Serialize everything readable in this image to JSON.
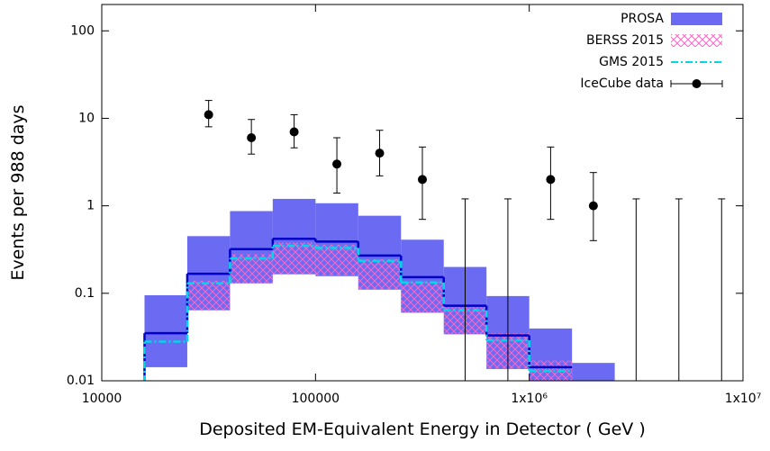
{
  "chart_data": {
    "type": "histogram",
    "xlabel": "Deposited EM-Equivalent Energy in Detector  ( GeV )",
    "ylabel": "Events  per  988  days",
    "xlog": true,
    "ylog": true,
    "xlim": [
      10000,
      10000000
    ],
    "ylim": [
      0.01,
      200
    ],
    "xticks": [
      10000,
      100000,
      {
        "value": 1000000,
        "label": "1x10⁶"
      },
      {
        "value": 10000000,
        "label": "1x10⁷"
      }
    ],
    "yticks": [
      0.01,
      0.1,
      1,
      10,
      100
    ],
    "legend": "upper right",
    "bins": [
      15849,
      25119,
      39811,
      63096,
      100000,
      158489,
      251189,
      398107,
      630957,
      1000000,
      1584893,
      2511886
    ],
    "series": [
      {
        "name": "PROSA",
        "style": "band",
        "color": "#6a6af2",
        "line_color": "#0000c8",
        "low": [
          0.0143,
          0.064,
          0.13,
          0.165,
          0.157,
          0.11,
          0.06,
          0.034,
          0.0136,
          0.01,
          0.01
        ],
        "high": [
          0.095,
          0.45,
          0.87,
          1.2,
          1.07,
          0.77,
          0.41,
          0.2,
          0.093,
          0.0396,
          0.016
        ],
        "values": [
          0.035,
          0.167,
          0.32,
          0.42,
          0.39,
          0.27,
          0.153,
          0.072,
          0.033,
          0.0143,
          null
        ]
      },
      {
        "name": "BERSS 2015",
        "style": "hatch",
        "color": "#ff66c4",
        "low": [
          null,
          0.064,
          0.13,
          0.165,
          0.16,
          0.11,
          0.06,
          0.034,
          0.0136,
          0.01,
          null
        ],
        "high": [
          null,
          0.139,
          0.28,
          0.38,
          0.36,
          0.245,
          0.136,
          0.074,
          0.035,
          0.017,
          null
        ]
      },
      {
        "name": "GMS 2015",
        "style": "dashdot",
        "color": "#00d8e8",
        "values": [
          0.028,
          0.13,
          0.25,
          0.35,
          0.33,
          0.235,
          0.133,
          0.064,
          0.029,
          0.013,
          null
        ]
      },
      {
        "name": "IceCube data",
        "style": "errorbar",
        "color": "#000000",
        "x": [
          31623,
          50119,
          79433,
          125893,
          199526,
          316228,
          501187,
          794328,
          1258925,
          1995262,
          3162278,
          5011872,
          7943282
        ],
        "values": [
          11,
          6,
          7,
          3,
          4,
          2,
          null,
          null,
          2,
          1,
          null,
          null,
          null
        ],
        "err_low": [
          8,
          3.9,
          4.6,
          1.4,
          2.2,
          0.7,
          null,
          null,
          0.7,
          0.4,
          null,
          null,
          null
        ],
        "err_high": [
          16,
          9.7,
          11,
          6,
          7.3,
          4.7,
          1.2,
          1.2,
          4.7,
          2.4,
          1.2,
          1.2,
          1.2
        ]
      }
    ]
  }
}
